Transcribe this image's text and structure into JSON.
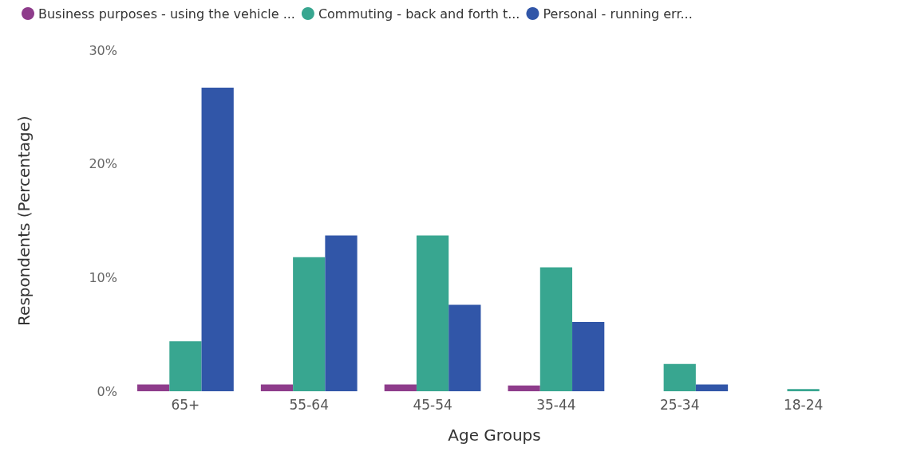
{
  "chart_data": {
    "type": "bar",
    "xlabel": "Age Groups",
    "ylabel": "Respondents (Percentage)",
    "categories": [
      "65+",
      "55-64",
      "45-54",
      "35-44",
      "25-34",
      "18-24"
    ],
    "series": [
      {
        "name": "Business purposes - using the vehicle ...",
        "color": "#8e3c8b",
        "values": [
          0.6,
          0.6,
          0.6,
          0.5,
          null,
          null
        ]
      },
      {
        "name": "Commuting - back and forth t...",
        "color": "#38a690",
        "values": [
          4.4,
          11.8,
          13.7,
          10.9,
          2.4,
          0.2
        ]
      },
      {
        "name": "Personal - running err...",
        "color": "#3156a8",
        "values": [
          26.7,
          13.7,
          7.6,
          6.1,
          0.6,
          null
        ]
      }
    ],
    "ylim": [
      0,
      30
    ],
    "yticks": [
      {
        "value": 0,
        "label": "0%"
      },
      {
        "value": 10,
        "label": "10%"
      },
      {
        "value": 20,
        "label": "20%"
      },
      {
        "value": 30,
        "label": "30%"
      }
    ],
    "grid": false,
    "legend": "top left"
  }
}
